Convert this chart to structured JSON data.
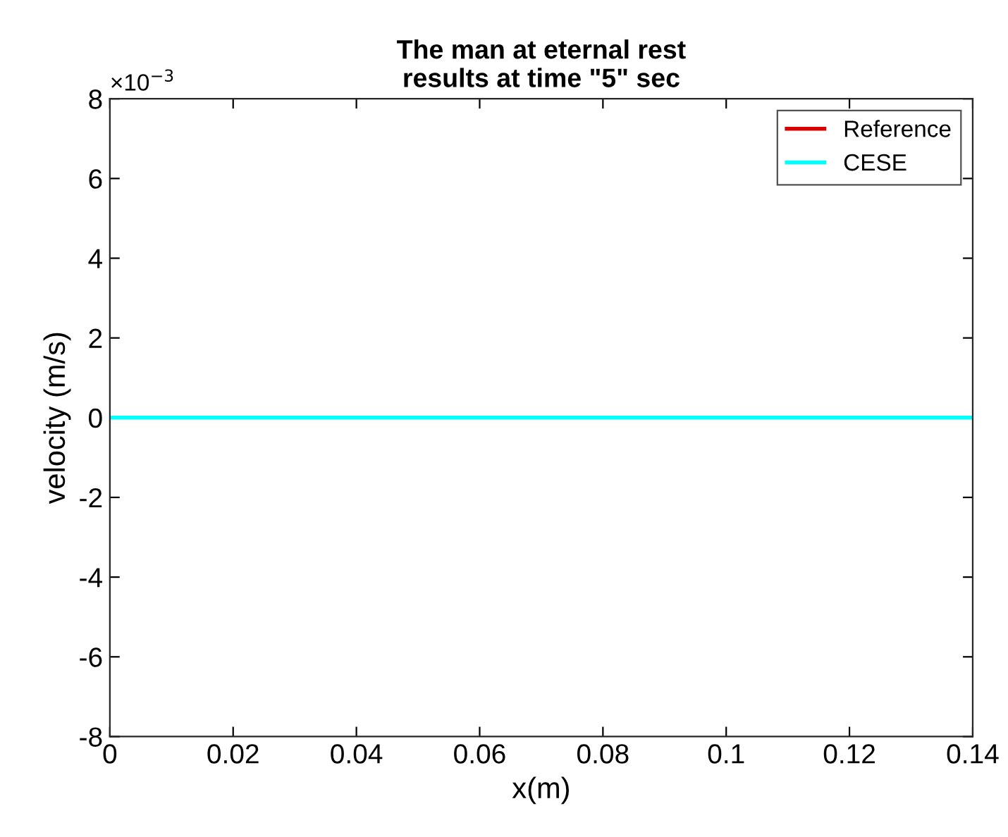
{
  "chart_data": {
    "type": "line",
    "title": "The man at eternal rest\nresults at time \"5\" sec",
    "xlabel": "x(m)",
    "ylabel": "velocity (m/s)",
    "annotations": [
      "×10$^{−3}$"
    ],
    "x": [
      0,
      0.14
    ],
    "series": [
      {
        "name": "Reference",
        "color": "#d90000",
        "values": [
          null,
          null
        ]
      },
      {
        "name": "CESE",
        "color": "#00ffff",
        "values": [
          0,
          0
        ]
      }
    ],
    "xlim": [
      0,
      0.14
    ],
    "xticks": [
      0,
      0.02,
      0.04,
      0.06,
      0.08,
      0.1,
      0.12,
      0.14
    ],
    "ylim": [
      -8,
      8
    ],
    "yticks": [
      -8,
      -6,
      -4,
      -2,
      0,
      2,
      4,
      6,
      8
    ],
    "grid": false,
    "legend": "top right",
    "marker": "none",
    "line_style": "solid"
  }
}
